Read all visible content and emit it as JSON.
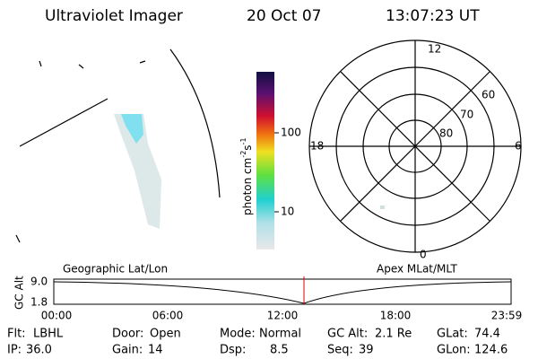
{
  "header": {
    "instrument": "Ultraviolet Imager",
    "date": "20 Oct 07",
    "time": "13:07:23 UT"
  },
  "colorbar": {
    "label": "photon cm",
    "exp1": "-2",
    "unit2": "s",
    "exp2": "-1",
    "ticks": [
      "100",
      "10"
    ]
  },
  "polar": {
    "top": "12",
    "bottom": "0",
    "left": "18",
    "right": "6",
    "lat_labels": [
      "60",
      "70",
      "80"
    ]
  },
  "orbit": {
    "left_title": "Geographic Lat/Lon",
    "right_title": "Apex MLat/MLT",
    "y_label": "GC Alt",
    "y_ticks": [
      "9.0",
      "1.8"
    ],
    "x_ticks": [
      "00:00",
      "06:00",
      "12:00",
      "18:00",
      "23:59"
    ]
  },
  "status": [
    [
      {
        "label": "Flt:",
        "value": "LBHL"
      },
      {
        "label": "Door:",
        "value": "Open"
      },
      {
        "label": "Mode:",
        "value": "Normal"
      },
      {
        "label": "GC Alt:",
        "value": "2.1 Re"
      },
      {
        "label": "GLat:",
        "value": "74.4"
      }
    ],
    [
      {
        "label": "IP:",
        "value": "36.0"
      },
      {
        "label": "Gain:",
        "value": "14"
      },
      {
        "label": "Dsp:",
        "value": "8.5"
      },
      {
        "label": "Seq:",
        "value": "39"
      },
      {
        "label": "GLon:",
        "value": "124.6"
      }
    ]
  ]
}
